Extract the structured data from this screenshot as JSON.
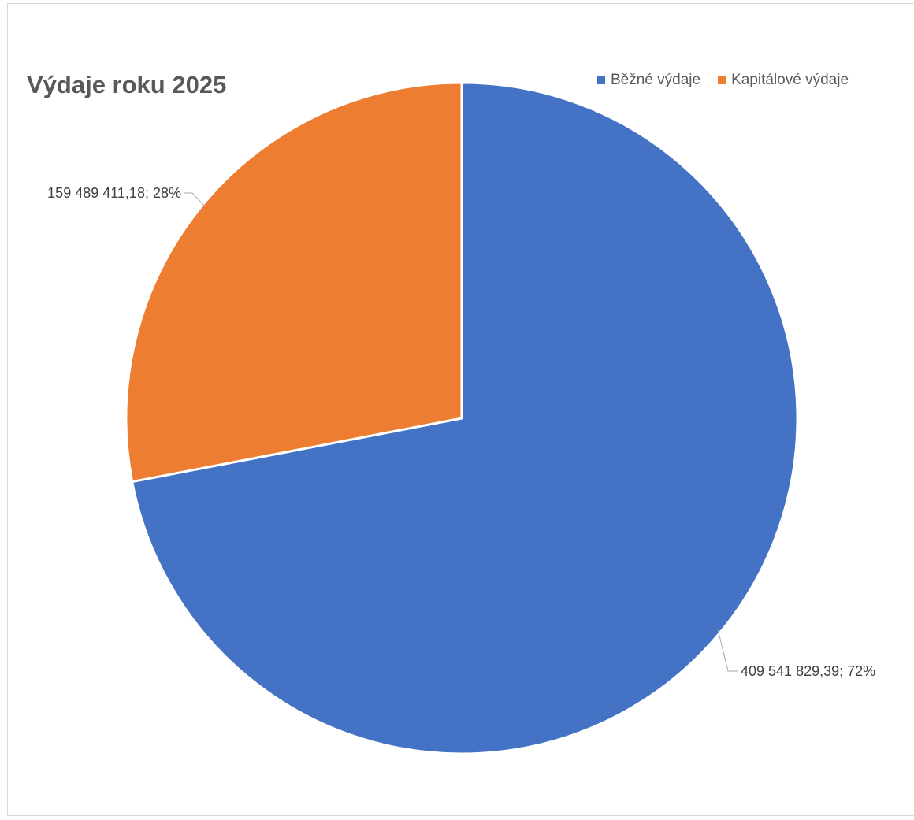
{
  "chart_data": {
    "type": "pie",
    "title": "Výdaje roku 2025",
    "legend_position": "top-right",
    "categories": [
      "Běžné výdaje",
      "Kapitálové výdaje"
    ],
    "values": [
      409541829.39,
      159489411.18
    ],
    "percentages": [
      72,
      28
    ],
    "colors": [
      "#4472C4",
      "#ED7D31"
    ],
    "data_labels": [
      "409 541 829,39; 72%",
      "159 489 411,18; 28%"
    ]
  }
}
